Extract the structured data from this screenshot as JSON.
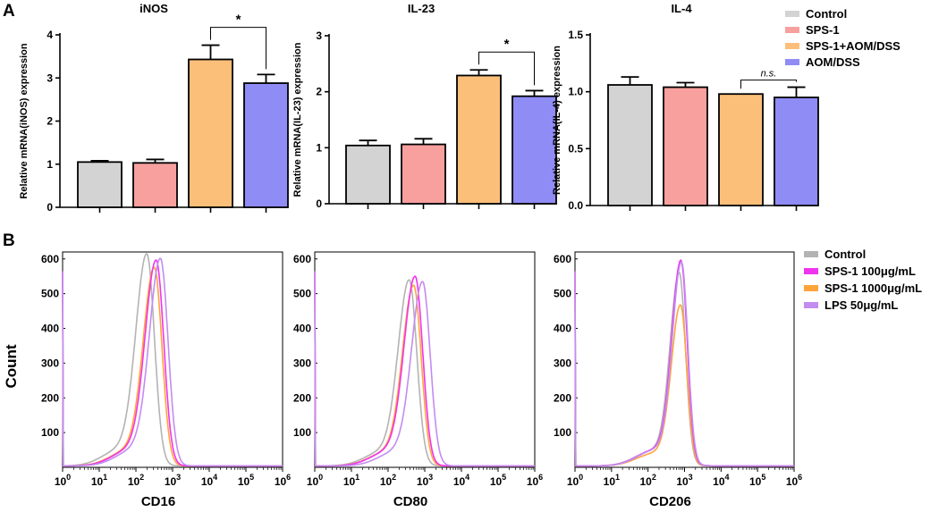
{
  "panel_labels": {
    "a": "A",
    "b": "B"
  },
  "legend_a": [
    {
      "label": "Control",
      "color": "#d3d3d3"
    },
    {
      "label": "SPS-1",
      "color": "#f7a09e"
    },
    {
      "label": "SPS-1+AOM/DSS",
      "color": "#fbbf7a"
    },
    {
      "label": "AOM/DSS",
      "color": "#8f8cf6"
    }
  ],
  "legend_b": [
    {
      "label": "Control",
      "color": "#b3b3b3"
    },
    {
      "label": "SPS-1 100μg/mL",
      "color": "#f033f0"
    },
    {
      "label": "SPS-1 1000μg/mL",
      "color": "#ffa43a"
    },
    {
      "label": "LPS 50μg/mL",
      "color": "#c38cf0"
    }
  ],
  "flow_ylabel": "Count",
  "chart_data": [
    {
      "type": "bar",
      "title": "iNOS",
      "ylabel": "Relative mRNA(iNOS) expression",
      "categories": [
        "Control",
        "SPS-1",
        "SPS-1+AOM/DSS",
        "AOM/DSS"
      ],
      "values": [
        1.05,
        1.03,
        3.43,
        2.88
      ],
      "errors": [
        0.03,
        0.08,
        0.33,
        0.2
      ],
      "ylim": [
        0,
        4
      ],
      "yticks": [
        "0",
        "1",
        "2",
        "3",
        "4"
      ],
      "significance": {
        "between": [
          2,
          3
        ],
        "label": "*"
      }
    },
    {
      "type": "bar",
      "title": "IL-23",
      "ylabel": "Relative mRNA(IL-23) expression",
      "categories": [
        "Control",
        "SPS-1",
        "SPS-1+AOM/DSS",
        "AOM/DSS"
      ],
      "values": [
        1.04,
        1.06,
        2.29,
        1.92
      ],
      "errors": [
        0.09,
        0.1,
        0.1,
        0.1
      ],
      "ylim": [
        0,
        3
      ],
      "yticks": [
        "0",
        "1",
        "2",
        "3"
      ],
      "significance": {
        "between": [
          2,
          3
        ],
        "label": "*"
      }
    },
    {
      "type": "bar",
      "title": "IL-4",
      "ylabel": "Relative mRNA(IL-4) expression",
      "categories": [
        "Control",
        "SPS-1",
        "SPS-1+AOM/DSS",
        "AOM/DSS"
      ],
      "values": [
        1.06,
        1.04,
        0.98,
        0.95
      ],
      "errors": [
        0.07,
        0.04,
        0.0,
        0.09
      ],
      "ylim": [
        0,
        1.5
      ],
      "yticks": [
        "0.0",
        "0.5",
        "1.0",
        "1.5"
      ],
      "significance": {
        "between": [
          2,
          3
        ],
        "label": "n.s."
      }
    },
    {
      "type": "line",
      "title": "",
      "xlabel": "CD16",
      "ylabel": "Count",
      "xscale": "log",
      "xlim": [
        1,
        1000000
      ],
      "ylim": [
        0,
        620
      ],
      "yticks": [
        100,
        200,
        300,
        400,
        500,
        600
      ],
      "xticks": [
        "10^0",
        "10^1",
        "10^2",
        "10^3",
        "10^4",
        "10^5",
        "10^6"
      ],
      "series": [
        {
          "name": "Control",
          "peak_x": 200,
          "peak_count": 593
        },
        {
          "name": "SPS-1 100μg/mL",
          "peak_x": 360,
          "peak_count": 575
        },
        {
          "name": "SPS-1 1000μg/mL",
          "peak_x": 320,
          "peak_count": 555
        },
        {
          "name": "LPS 50μg/mL",
          "peak_x": 470,
          "peak_count": 580
        }
      ]
    },
    {
      "type": "line",
      "title": "",
      "xlabel": "CD80",
      "ylabel": "Count",
      "xscale": "log",
      "xlim": [
        1,
        1000000
      ],
      "ylim": [
        0,
        620
      ],
      "yticks": [
        100,
        200,
        300,
        400,
        500,
        600
      ],
      "xticks": [
        "10^0",
        "10^1",
        "10^2",
        "10^3",
        "10^4",
        "10^5",
        "10^6"
      ],
      "series": [
        {
          "name": "Control",
          "peak_x": 380,
          "peak_count": 520
        },
        {
          "name": "SPS-1 100μg/mL",
          "peak_x": 550,
          "peak_count": 530
        },
        {
          "name": "SPS-1 1000μg/mL",
          "peak_x": 500,
          "peak_count": 505
        },
        {
          "name": "LPS 50μg/mL",
          "peak_x": 880,
          "peak_count": 515
        }
      ]
    },
    {
      "type": "line",
      "title": "",
      "xlabel": "CD206",
      "ylabel": "Count",
      "xscale": "log",
      "xlim": [
        1,
        1000000
      ],
      "ylim": [
        0,
        620
      ],
      "yticks": [
        100,
        200,
        300,
        400,
        500,
        600
      ],
      "xticks": [
        "10^0",
        "10^1",
        "10^2",
        "10^3",
        "10^4",
        "10^5",
        "10^6"
      ],
      "series": [
        {
          "name": "Control",
          "peak_x": 720,
          "peak_count": 540
        },
        {
          "name": "SPS-1 100μg/mL",
          "peak_x": 800,
          "peak_count": 575
        },
        {
          "name": "SPS-1 1000μg/mL",
          "peak_x": 780,
          "peak_count": 450
        },
        {
          "name": "LPS 50μg/mL",
          "peak_x": 830,
          "peak_count": 570
        }
      ]
    }
  ]
}
